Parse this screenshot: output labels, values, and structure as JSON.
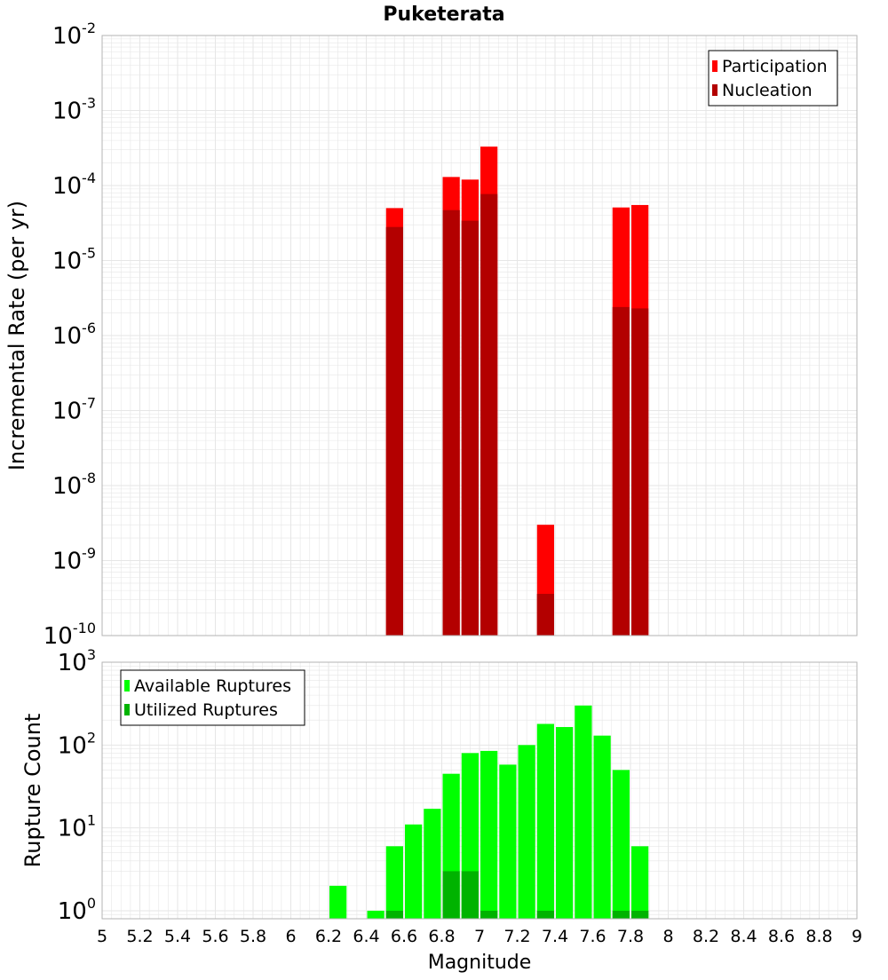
{
  "title": "Puketerata",
  "colors": {
    "participation": "#ff0000",
    "nucleation": "#b30000",
    "available": "#00ff00",
    "utilized": "#00b300",
    "grid": "#e6e6e6",
    "frame": "#b3b3b3"
  },
  "chart_data": [
    {
      "type": "bar",
      "panel": "top",
      "title": "Puketerata",
      "xlabel": "",
      "ylabel": "Incremental Rate (per yr)",
      "yscale": "log",
      "ylim": [
        1e-10,
        0.01
      ],
      "xlim": [
        5,
        9
      ],
      "grid": true,
      "legend_position": "top-right",
      "y_ticks": [
        {
          "base": "10",
          "exp": "-10"
        },
        {
          "base": "10",
          "exp": "-9"
        },
        {
          "base": "10",
          "exp": "-8"
        },
        {
          "base": "10",
          "exp": "-7"
        },
        {
          "base": "10",
          "exp": "-6"
        },
        {
          "base": "10",
          "exp": "-5"
        },
        {
          "base": "10",
          "exp": "-4"
        },
        {
          "base": "10",
          "exp": "-3"
        },
        {
          "base": "10",
          "exp": "-2"
        }
      ],
      "bin_width": 0.1,
      "x": [
        6.55,
        6.85,
        6.95,
        7.05,
        7.35,
        7.75,
        7.85
      ],
      "series": [
        {
          "name": "Participation",
          "color": "#ff0000",
          "values": [
            5e-05,
            0.00013,
            0.00012,
            0.00033,
            3e-09,
            5.1e-05,
            5.5e-05
          ]
        },
        {
          "name": "Nucleation",
          "color": "#b30000",
          "values": [
            2.8e-05,
            4.7e-05,
            3.4e-05,
            7.7e-05,
            3.6e-10,
            2.4e-06,
            2.3e-06
          ]
        }
      ]
    },
    {
      "type": "bar",
      "panel": "bottom",
      "title": "",
      "xlabel": "Magnitude",
      "ylabel": "Rupture Count",
      "yscale": "log",
      "ylim": [
        0.8,
        1000
      ],
      "xlim": [
        5,
        9
      ],
      "grid": true,
      "legend_position": "top-left",
      "y_ticks": [
        {
          "base": "10",
          "exp": "0",
          "value": 1
        },
        {
          "base": "10",
          "exp": "1",
          "value": 10
        },
        {
          "base": "10",
          "exp": "2",
          "value": 100
        },
        {
          "base": "10",
          "exp": "3",
          "value": 1000
        }
      ],
      "x_ticks": [
        "5",
        "5.2",
        "5.4",
        "5.6",
        "5.8",
        "6",
        "6.2",
        "6.4",
        "6.6",
        "6.8",
        "7",
        "7.2",
        "7.4",
        "7.6",
        "7.8",
        "8",
        "8.2",
        "8.4",
        "8.6",
        "8.8",
        "9"
      ],
      "bin_width": 0.1,
      "x": [
        6.25,
        6.45,
        6.55,
        6.65,
        6.75,
        6.85,
        6.95,
        7.05,
        7.15,
        7.25,
        7.35,
        7.45,
        7.55,
        7.65,
        7.75,
        7.85
      ],
      "series": [
        {
          "name": "Available Ruptures",
          "color": "#00ff00",
          "values": [
            2,
            1,
            6,
            11,
            17,
            45,
            80,
            85,
            58,
            100,
            180,
            165,
            300,
            130,
            50,
            6
          ]
        },
        {
          "name": "Utilized Ruptures",
          "color": "#00b300",
          "values": [
            0,
            0,
            1,
            0,
            0,
            3,
            3,
            1,
            0,
            0,
            1,
            0,
            0,
            0,
            1,
            1
          ]
        }
      ]
    }
  ]
}
